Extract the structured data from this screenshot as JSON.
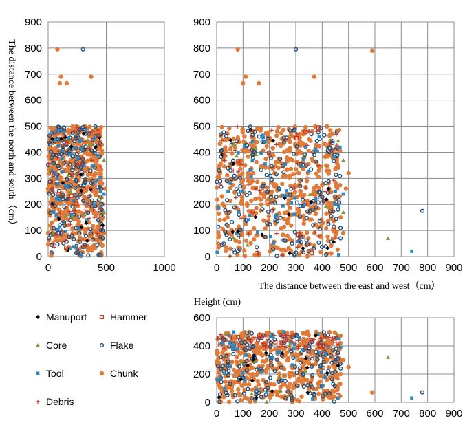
{
  "legend": [
    {
      "key": "manuport",
      "label": "Manuport",
      "color": "#000000",
      "marker": "diamond"
    },
    {
      "key": "hammer",
      "label": "Hammer",
      "color": "#c0392b",
      "marker": "square-hollow"
    },
    {
      "key": "core",
      "label": "Core",
      "color": "#7a9a3a",
      "marker": "triangle"
    },
    {
      "key": "flake",
      "label": "Flake",
      "color": "#1f4e79",
      "marker": "circle-hollow"
    },
    {
      "key": "tool",
      "label": "Tool",
      "color": "#2e86c1",
      "marker": "square"
    },
    {
      "key": "chunk",
      "label": "Chunk",
      "color": "#e07b39",
      "marker": "circle"
    },
    {
      "key": "debris",
      "label": "Debris",
      "color": "#c0392b",
      "marker": "plus"
    }
  ],
  "chart_data": [
    {
      "type": "scatter",
      "id": "plan-compressed",
      "ylabel": "The distance between the north and south（cm）",
      "xlabel": "",
      "xlim": [
        0,
        1000
      ],
      "ylim": [
        0,
        900
      ],
      "xticks": [
        "0",
        "500",
        "1000"
      ],
      "yticks": [
        "0",
        "100",
        "200",
        "300",
        "400",
        "500",
        "600",
        "700",
        "800",
        "900"
      ],
      "grid": true,
      "series_source": "plan"
    },
    {
      "type": "scatter",
      "id": "plan",
      "xlabel": "The distance between the east and west（cm）",
      "ylabel": "",
      "xlim": [
        0,
        900
      ],
      "ylim": [
        0,
        900
      ],
      "xticks": [
        "0",
        "100",
        "200",
        "300",
        "400",
        "500",
        "600",
        "700",
        "800",
        "900"
      ],
      "yticks": [
        "0",
        "100",
        "200",
        "300",
        "400",
        "500",
        "600",
        "700",
        "800",
        "900"
      ],
      "grid": true,
      "series": [
        {
          "key": "chunk",
          "cluster": {
            "x": [
              0,
              470
            ],
            "y": [
              0,
              500
            ],
            "n": 520
          },
          "outliers": [
            [
              80,
              795
            ],
            [
              110,
              690
            ],
            [
              100,
              665
            ],
            [
              160,
              665
            ],
            [
              590,
              790
            ],
            [
              370,
              690
            ],
            [
              460,
              200
            ],
            [
              470,
              150
            ],
            [
              490,
              260
            ],
            [
              500,
              320
            ],
            [
              480,
              90
            ],
            [
              455,
              95
            ]
          ]
        },
        {
          "key": "flake",
          "cluster": {
            "x": [
              0,
              470
            ],
            "y": [
              0,
              500
            ],
            "n": 190
          },
          "outliers": [
            [
              300,
              795
            ],
            [
              780,
              175
            ],
            [
              460,
              180
            ],
            [
              470,
              70
            ],
            [
              450,
              230
            ]
          ]
        },
        {
          "key": "tool",
          "cluster": {
            "x": [
              0,
              470
            ],
            "y": [
              0,
              500
            ],
            "n": 50
          },
          "outliers": [
            [
              740,
              20
            ],
            [
              450,
              250
            ],
            [
              480,
              240
            ]
          ]
        },
        {
          "key": "core",
          "cluster": {
            "x": [
              0,
              470
            ],
            "y": [
              0,
              500
            ],
            "n": 12
          },
          "outliers": [
            [
              650,
              70
            ],
            [
              480,
              370
            ],
            [
              480,
              170
            ]
          ]
        },
        {
          "key": "debris",
          "cluster": {
            "x": [
              0,
              470
            ],
            "y": [
              0,
              500
            ],
            "n": 50
          },
          "outliers": [
            [
              450,
              110
            ],
            [
              350,
              480
            ],
            [
              380,
              480
            ]
          ]
        },
        {
          "key": "manuport",
          "cluster": {
            "x": [
              0,
              470
            ],
            "y": [
              0,
              500
            ],
            "n": 18
          },
          "outliers": []
        },
        {
          "key": "hammer",
          "cluster": {
            "x": [
              0,
              470
            ],
            "y": [
              0,
              500
            ],
            "n": 8
          },
          "outliers": []
        }
      ]
    },
    {
      "type": "scatter",
      "id": "elevation",
      "title": "Height (cm)",
      "xlabel": "",
      "ylabel": "",
      "xlim": [
        0,
        900
      ],
      "ylim": [
        0,
        600
      ],
      "xticks": [
        "0",
        "100",
        "200",
        "300",
        "400",
        "500",
        "600",
        "700",
        "800",
        "900"
      ],
      "yticks": [
        "0",
        "200",
        "400",
        "600"
      ],
      "grid": true,
      "series": [
        {
          "key": "chunk",
          "cluster": {
            "x": [
              0,
              470
            ],
            "y": [
              0,
              500
            ],
            "n": 480
          },
          "outliers": [
            [
              590,
              70
            ],
            [
              460,
              400
            ],
            [
              480,
              300
            ],
            [
              470,
              200
            ],
            [
              500,
              250
            ],
            [
              460,
              120
            ]
          ]
        },
        {
          "key": "flake",
          "cluster": {
            "x": [
              0,
              470
            ],
            "y": [
              0,
              500
            ],
            "n": 170
          },
          "outliers": [
            [
              780,
              70
            ],
            [
              470,
              240
            ],
            [
              460,
              350
            ]
          ]
        },
        {
          "key": "tool",
          "cluster": {
            "x": [
              0,
              470
            ],
            "y": [
              0,
              500
            ],
            "n": 45
          },
          "outliers": [
            [
              740,
              30
            ],
            [
              460,
              30
            ],
            [
              470,
              390
            ]
          ]
        },
        {
          "key": "core",
          "cluster": {
            "x": [
              0,
              470
            ],
            "y": [
              0,
              500
            ],
            "n": 10
          },
          "outliers": [
            [
              650,
              320
            ]
          ]
        },
        {
          "key": "debris",
          "cluster": {
            "x": [
              0,
              470
            ],
            "y": [
              380,
              480
            ],
            "n": 60
          },
          "outliers": [
            [
              400,
              350
            ],
            [
              460,
              60
            ]
          ]
        },
        {
          "key": "manuport",
          "cluster": {
            "x": [
              0,
              470
            ],
            "y": [
              0,
              500
            ],
            "n": 16
          },
          "outliers": []
        },
        {
          "key": "hammer",
          "cluster": {
            "x": [
              0,
              470
            ],
            "y": [
              380,
              480
            ],
            "n": 10
          },
          "outliers": []
        }
      ]
    }
  ]
}
